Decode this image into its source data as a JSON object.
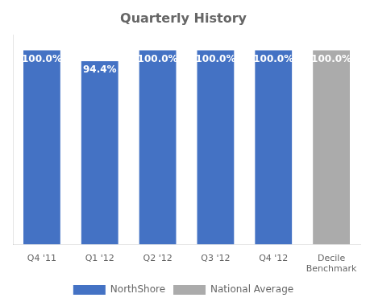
{
  "chart_data": {
    "type": "bar",
    "title": "Quarterly History",
    "categories": [
      "Q4 '11",
      "Q1 '12",
      "Q2 '12",
      "Q3 '12",
      "Q4 '12",
      "Decile\nBenchmark"
    ],
    "series": [
      {
        "name": "NorthShore",
        "color": "#4472C4",
        "values": [
          100.0,
          94.4,
          100.0,
          100.0,
          100.0,
          null
        ],
        "value_labels": [
          "100.0%",
          "94.4%",
          "100.0%",
          "100.0%",
          "100.0%",
          null
        ]
      },
      {
        "name": "National Average",
        "color": "#ABABAB",
        "values": [
          null,
          null,
          null,
          null,
          null,
          100.0
        ],
        "value_labels": [
          null,
          null,
          null,
          null,
          null,
          "100.0%"
        ]
      }
    ],
    "ylim": [
      0,
      108
    ],
    "grid": false,
    "tick_labels": "x",
    "data_labels": true,
    "legend": "bottom"
  }
}
